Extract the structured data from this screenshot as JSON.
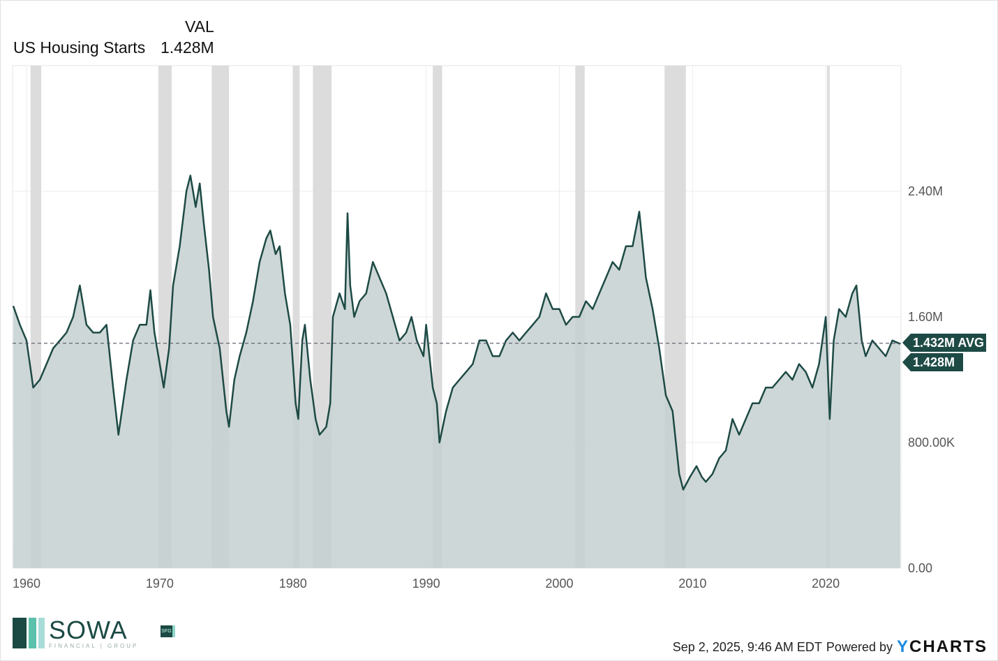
{
  "header": {
    "value_col_label": "VAL",
    "series_name": "US Housing Starts",
    "current_value": "1.428M"
  },
  "chart_data": {
    "type": "area",
    "title": "",
    "series": [
      {
        "name": "US Housing Starts"
      }
    ],
    "x": [
      1959.0,
      1959.5,
      1960.0,
      1960.5,
      1961.0,
      1961.5,
      1962.0,
      1962.5,
      1963.0,
      1963.5,
      1964.0,
      1964.5,
      1965.0,
      1965.5,
      1966.0,
      1966.5,
      1966.9,
      1967.5,
      1968.0,
      1968.5,
      1969.0,
      1969.3,
      1969.6,
      1970.0,
      1970.3,
      1970.7,
      1971.0,
      1971.5,
      1972.0,
      1972.3,
      1972.7,
      1973.0,
      1973.3,
      1973.7,
      1974.0,
      1974.5,
      1975.0,
      1975.2,
      1975.6,
      1976.0,
      1976.5,
      1977.0,
      1977.5,
      1978.0,
      1978.3,
      1978.7,
      1979.0,
      1979.4,
      1979.8,
      1980.2,
      1980.4,
      1980.7,
      1980.9,
      1981.3,
      1981.7,
      1982.0,
      1982.5,
      1982.8,
      1983.0,
      1983.5,
      1983.9,
      1984.1,
      1984.3,
      1984.6,
      1985.0,
      1985.5,
      1986.0,
      1986.5,
      1987.0,
      1987.5,
      1988.0,
      1988.5,
      1988.9,
      1989.3,
      1989.8,
      1990.0,
      1990.5,
      1990.8,
      1991.0,
      1991.5,
      1992.0,
      1992.5,
      1993.0,
      1993.5,
      1994.0,
      1994.5,
      1995.0,
      1995.5,
      1996.0,
      1996.5,
      1997.0,
      1997.5,
      1998.0,
      1998.5,
      1999.0,
      1999.5,
      2000.0,
      2000.5,
      2001.0,
      2001.5,
      2002.0,
      2002.5,
      2003.0,
      2003.5,
      2004.0,
      2004.5,
      2005.0,
      2005.5,
      2006.0,
      2006.5,
      2007.0,
      2007.5,
      2008.0,
      2008.5,
      2009.0,
      2009.3,
      2009.8,
      2010.3,
      2010.7,
      2011.0,
      2011.5,
      2012.0,
      2012.5,
      2013.0,
      2013.5,
      2014.0,
      2014.5,
      2015.0,
      2015.5,
      2016.0,
      2016.5,
      2017.0,
      2017.5,
      2018.0,
      2018.5,
      2019.0,
      2019.5,
      2020.0,
      2020.3,
      2020.6,
      2021.0,
      2021.5,
      2022.0,
      2022.3,
      2022.7,
      2023.0,
      2023.5,
      2024.0,
      2024.5,
      2025.0,
      2025.6
    ],
    "values": [
      1.67,
      1.55,
      1.45,
      1.15,
      1.2,
      1.3,
      1.4,
      1.45,
      1.5,
      1.6,
      1.8,
      1.55,
      1.5,
      1.5,
      1.55,
      1.15,
      0.85,
      1.2,
      1.45,
      1.55,
      1.55,
      1.77,
      1.5,
      1.3,
      1.15,
      1.4,
      1.8,
      2.05,
      2.4,
      2.5,
      2.3,
      2.45,
      2.2,
      1.9,
      1.6,
      1.4,
      1.0,
      0.9,
      1.2,
      1.35,
      1.5,
      1.7,
      1.95,
      2.1,
      2.15,
      2.0,
      2.05,
      1.75,
      1.55,
      1.05,
      0.95,
      1.45,
      1.55,
      1.2,
      0.95,
      0.85,
      0.9,
      1.05,
      1.6,
      1.75,
      1.65,
      2.26,
      1.8,
      1.6,
      1.7,
      1.75,
      1.95,
      1.85,
      1.75,
      1.6,
      1.45,
      1.5,
      1.6,
      1.45,
      1.35,
      1.55,
      1.15,
      1.05,
      0.8,
      1.0,
      1.15,
      1.2,
      1.25,
      1.3,
      1.45,
      1.45,
      1.35,
      1.35,
      1.45,
      1.5,
      1.45,
      1.5,
      1.55,
      1.6,
      1.75,
      1.65,
      1.65,
      1.55,
      1.6,
      1.6,
      1.7,
      1.65,
      1.75,
      1.85,
      1.95,
      1.9,
      2.05,
      2.05,
      2.27,
      1.85,
      1.65,
      1.4,
      1.1,
      1.0,
      0.6,
      0.5,
      0.58,
      0.65,
      0.58,
      0.55,
      0.6,
      0.7,
      0.75,
      0.95,
      0.85,
      0.95,
      1.05,
      1.05,
      1.15,
      1.15,
      1.2,
      1.25,
      1.2,
      1.3,
      1.25,
      1.15,
      1.3,
      1.6,
      0.95,
      1.45,
      1.65,
      1.6,
      1.75,
      1.8,
      1.45,
      1.35,
      1.45,
      1.4,
      1.35,
      1.45,
      1.428
    ],
    "average": 1.432,
    "average_label": "1.432M AVG",
    "last_label": "1.428M",
    "x_ticks": [
      "1960",
      "1970",
      "1980",
      "1990",
      "2000",
      "2010",
      "2020"
    ],
    "x_tick_values": [
      1960,
      1970,
      1980,
      1990,
      2000,
      2010,
      2020
    ],
    "y_ticks": [
      "0.00",
      "800.00K",
      "1.60M",
      "2.40M"
    ],
    "y_tick_values": [
      0,
      0.8,
      1.6,
      2.4
    ],
    "xlim": [
      1958.95,
      2025.65
    ],
    "ylim": [
      0,
      3.2
    ],
    "y_axis_position": "right",
    "grid": true,
    "recessions": [
      [
        1960.3,
        1961.1
      ],
      [
        1969.9,
        1970.9
      ],
      [
        1973.9,
        1975.2
      ],
      [
        1980.0,
        1980.5
      ],
      [
        1981.5,
        1982.9
      ],
      [
        1990.5,
        1991.2
      ],
      [
        2001.2,
        2001.9
      ],
      [
        2007.9,
        2009.5
      ],
      [
        2020.1,
        2020.3
      ]
    ],
    "colors": {
      "line": "#1d4a45",
      "fill": "#c5d0d0",
      "recession": "#dcdcdc",
      "label_bg": "#1d4a45"
    }
  },
  "footer": {
    "timestamp": "Sep 2, 2025, 9:46 AM EDT",
    "powered_by": "Powered by",
    "brand_y": "Y",
    "brand_rest": "CHARTS"
  },
  "logo": {
    "name": "SOWA",
    "sub": "FINANCIAL | GROUP",
    "badge": "SFG"
  }
}
